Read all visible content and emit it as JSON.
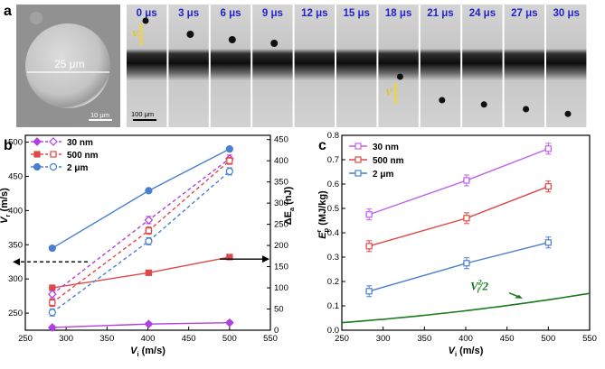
{
  "panel_labels": {
    "a": "a",
    "b": "b",
    "c": "c"
  },
  "micrograph": {
    "dimension": "25 μm",
    "scalebar": "10 μm"
  },
  "frames": {
    "times": [
      "0 μs",
      "3 μs",
      "6 μs",
      "9 μs",
      "12 μs",
      "15 μs",
      "18 μs",
      "21 μs",
      "24 μs",
      "27 μs",
      "30 μs"
    ],
    "scalebar": "100 μm",
    "vi_label": "V",
    "vi_sub": "i",
    "vr_label": "V",
    "vr_sub": "r",
    "incident_y": [
      10,
      18,
      30,
      38
    ],
    "rebound_y": [
      50,
      62,
      75,
      88
    ]
  },
  "chart_data": [
    {
      "panel": "b",
      "type": "line",
      "xlabel": "V",
      "xlabel_sub": "i",
      "xlabel_unit": " (m/s)",
      "ylabel": "V",
      "ylabel_sub": "r",
      "ylabel_unit": " (m/s)",
      "y2label": "ΔE",
      "y2label_sub": "a",
      "y2label_unit": " (nJ)",
      "xlim": [
        250,
        550
      ],
      "ylim": [
        225,
        510
      ],
      "y2lim": [
        0,
        460
      ],
      "xticks": [
        250,
        300,
        350,
        400,
        450,
        500,
        550
      ],
      "yticks": [
        250,
        300,
        350,
        400,
        450,
        500
      ],
      "y2ticks": [
        0,
        50,
        100,
        150,
        200,
        250,
        300,
        350,
        400,
        450
      ],
      "legend": "top-left",
      "series": [
        {
          "name": "30 nm",
          "color": "#b040e0",
          "axis": "left",
          "x": [
            283,
            401,
            500
          ],
          "values": [
            229,
            234,
            236
          ]
        },
        {
          "name": "500 nm",
          "color": "#e04848",
          "axis": "left",
          "x": [
            283,
            401,
            500
          ],
          "values": [
            287,
            309,
            332
          ]
        },
        {
          "name": "2 μm",
          "color": "#4a7fd0",
          "axis": "left",
          "x": [
            283,
            401,
            500
          ],
          "values": [
            345,
            429,
            490
          ]
        },
        {
          "name": "30 nm",
          "color": "#b040e0",
          "axis": "right",
          "dashed": true,
          "x": [
            283,
            401,
            500
          ],
          "values": [
            85,
            260,
            405
          ]
        },
        {
          "name": "500 nm",
          "color": "#e04848",
          "axis": "right",
          "dashed": true,
          "x": [
            283,
            401,
            500
          ],
          "values": [
            65,
            235,
            400
          ]
        },
        {
          "name": "2 μm",
          "color": "#4a7fd0",
          "axis": "right",
          "dashed": true,
          "x": [
            283,
            401,
            500
          ],
          "values": [
            42,
            210,
            375
          ]
        }
      ]
    },
    {
      "panel": "c",
      "type": "line",
      "xlabel": "V",
      "xlabel_sub": "i",
      "xlabel_unit": " (m/s)",
      "ylabel": "E",
      "ylabel_sub": "p",
      "ylabel_sup": "r",
      "ylabel_unit": " (MJ/kg)",
      "xlim": [
        250,
        550
      ],
      "ylim": [
        0,
        0.8
      ],
      "xticks": [
        250,
        300,
        350,
        400,
        450,
        500,
        550
      ],
      "yticks": [
        0.0,
        0.1,
        0.2,
        0.3,
        0.4,
        0.5,
        0.6,
        0.7,
        0.8
      ],
      "legend": "top-left",
      "series": [
        {
          "name": "30 nm",
          "color": "#c060e8",
          "x": [
            283,
            401,
            500
          ],
          "values": [
            0.475,
            0.615,
            0.745
          ]
        },
        {
          "name": "500 nm",
          "color": "#e04848",
          "x": [
            283,
            401,
            500
          ],
          "values": [
            0.345,
            0.46,
            0.59
          ]
        },
        {
          "name": "2 μm",
          "color": "#4a7fd0",
          "x": [
            283,
            401,
            500
          ],
          "values": [
            0.16,
            0.275,
            0.36
          ]
        }
      ],
      "curve": {
        "color": "#1a7a1a",
        "label_main": "V",
        "label_sup": "2",
        "label_sub": "i",
        "label_rest": "/2"
      }
    }
  ]
}
